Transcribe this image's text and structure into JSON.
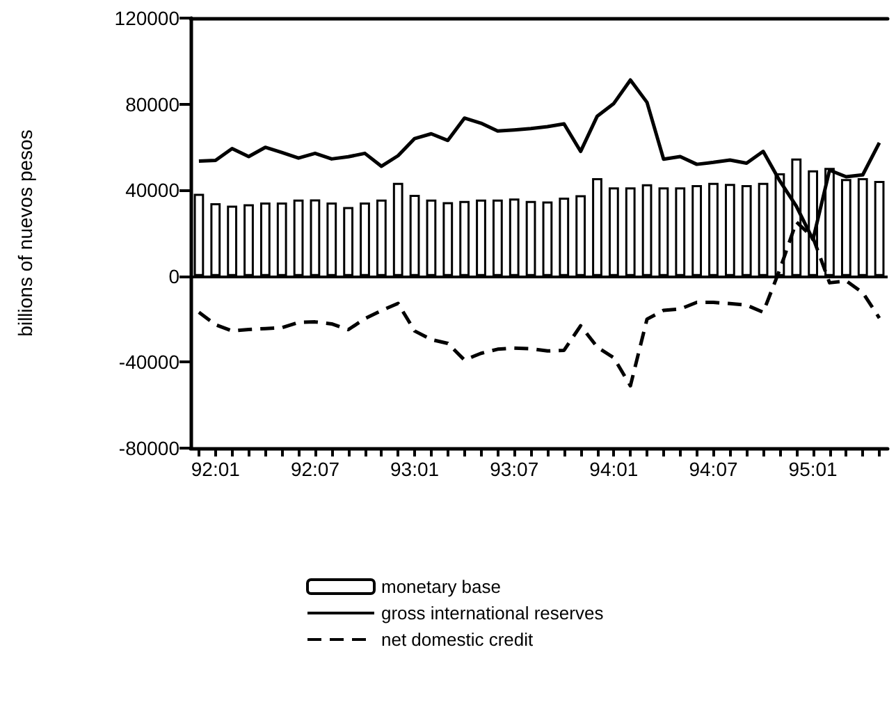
{
  "chart_data": {
    "type": "bar",
    "ylabel": "billions of nuevos pesos",
    "categories": [
      null,
      "92:01",
      null,
      null,
      null,
      null,
      null,
      "92:07",
      null,
      null,
      null,
      null,
      null,
      "93:01",
      null,
      null,
      null,
      null,
      null,
      "93:07",
      null,
      null,
      null,
      null,
      null,
      "94:01",
      null,
      null,
      null,
      null,
      null,
      "94:07",
      null,
      null,
      null,
      null,
      null,
      "95:01",
      null,
      null,
      null,
      null
    ],
    "series": [
      {
        "name": "monetary base",
        "color": "#000000",
        "values": [
          38300,
          33900,
          32800,
          33400,
          34200,
          34200,
          35600,
          35700,
          34200,
          32100,
          34200,
          35600,
          43400,
          37800,
          35600,
          34400,
          35000,
          35600,
          35600,
          36100,
          35000,
          34700,
          36500,
          37600,
          45600,
          41300,
          41300,
          42700,
          41300,
          41300,
          42300,
          43400,
          42900,
          42300,
          43400,
          47800,
          54700,
          49200,
          50300,
          45200,
          45600,
          44300
        ]
      },
      {
        "name": "gross international reserves",
        "type": "line",
        "line_style": "solid",
        "color": "#000000",
        "values": [
          53500,
          53800,
          59300,
          55600,
          59900,
          57500,
          54900,
          57100,
          54500,
          55500,
          57100,
          51100,
          56000,
          64000,
          66200,
          63100,
          73500,
          71100,
          67500,
          68000,
          68600,
          69500,
          70800,
          58000,
          74400,
          80300,
          91200,
          80800,
          54400,
          55600,
          52000,
          52900,
          54000,
          52500,
          58000,
          44300,
          32500,
          17000,
          49300,
          46200,
          47100,
          62000
        ]
      },
      {
        "name": "net domestic credit",
        "type": "line",
        "line_style": "dashed",
        "color": "#000000",
        "values": [
          -16800,
          -22600,
          -25500,
          -24800,
          -24400,
          -24000,
          -21500,
          -21300,
          -22200,
          -24900,
          -19800,
          -16000,
          -12700,
          -25500,
          -29500,
          -31300,
          -39000,
          -35900,
          -34000,
          -33500,
          -33800,
          -34800,
          -34500,
          -23100,
          -33000,
          -38000,
          -51000,
          -20000,
          -15900,
          -15300,
          -12200,
          -12200,
          -12800,
          -13500,
          -16800,
          3000,
          25200,
          17900,
          -3100,
          -2200,
          -7700,
          -19500
        ]
      }
    ],
    "ylim": [
      -80000,
      120000
    ],
    "yticks": [
      -80000,
      -40000,
      0,
      40000,
      80000,
      120000
    ],
    "ref_lines": [
      {
        "axis": "y",
        "value": 0,
        "color": "#000000"
      }
    ],
    "grid": false,
    "legend": "bottom",
    "marker": "none"
  }
}
